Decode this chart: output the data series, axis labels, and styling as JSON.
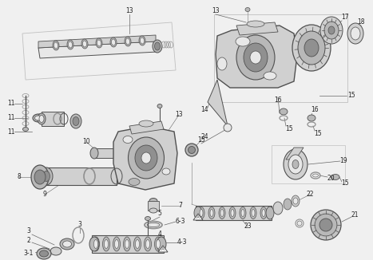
{
  "bg_color": "#f0f0f0",
  "part_fill": "#d0d0d0",
  "part_mid": "#b8b8b8",
  "part_dark": "#909090",
  "part_outline": "#505050",
  "light_fill": "#e8e8e8",
  "white": "#f8f8f8",
  "label_color": "#222222",
  "line_color": "#666666",
  "group_box_color": "#c0c0c0"
}
